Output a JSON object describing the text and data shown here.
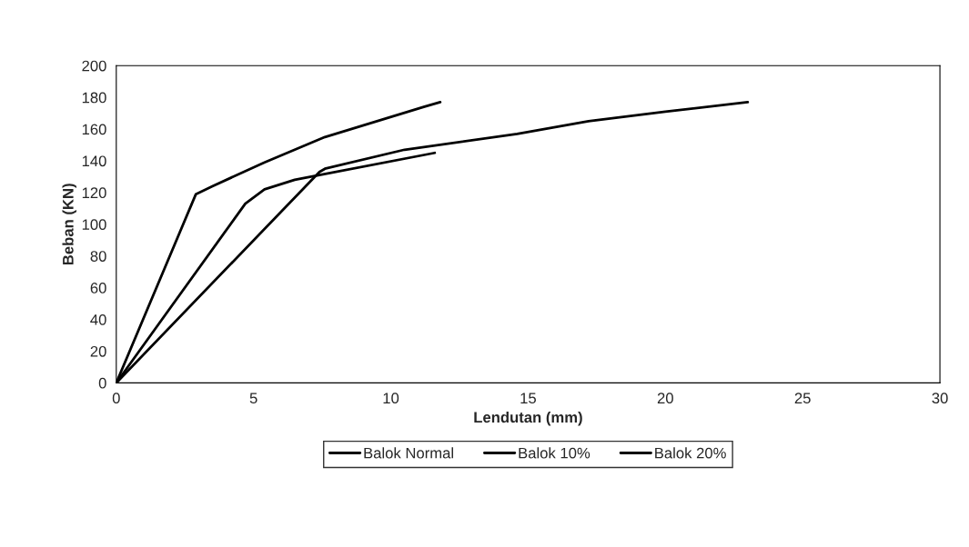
{
  "chart_data": {
    "type": "line",
    "xlabel": "Lendutan (mm)",
    "ylabel": "Beban (KN)",
    "xlim": [
      0,
      30
    ],
    "xticks": [
      0,
      5,
      10,
      15,
      20,
      25,
      30
    ],
    "ylim": [
      0,
      200
    ],
    "yticks": [
      0,
      20,
      40,
      60,
      80,
      100,
      120,
      140,
      160,
      180,
      200
    ],
    "grid": false,
    "legend": "bottom",
    "marker": "none",
    "line_style": "solid",
    "series": [
      {
        "name": "Balok Normal",
        "color": "#000000",
        "x": [
          0,
          7.4,
          7.6,
          10.5,
          14.6,
          17.2,
          20,
          23
        ],
        "values": [
          0,
          133,
          135,
          147,
          157,
          165,
          171,
          177
        ]
      },
      {
        "name": "Balok 10%",
        "color": "#000000",
        "x": [
          0,
          4.7,
          5.4,
          6.5,
          7.4,
          11.6
        ],
        "values": [
          0,
          113,
          122,
          128,
          131,
          145
        ]
      },
      {
        "name": "Balok 20%",
        "color": "#000000",
        "x": [
          0,
          2.9,
          3.5,
          5.4,
          7.6,
          11.2,
          11.8
        ],
        "values": [
          0,
          119,
          124,
          139,
          155,
          174,
          177
        ]
      }
    ]
  }
}
